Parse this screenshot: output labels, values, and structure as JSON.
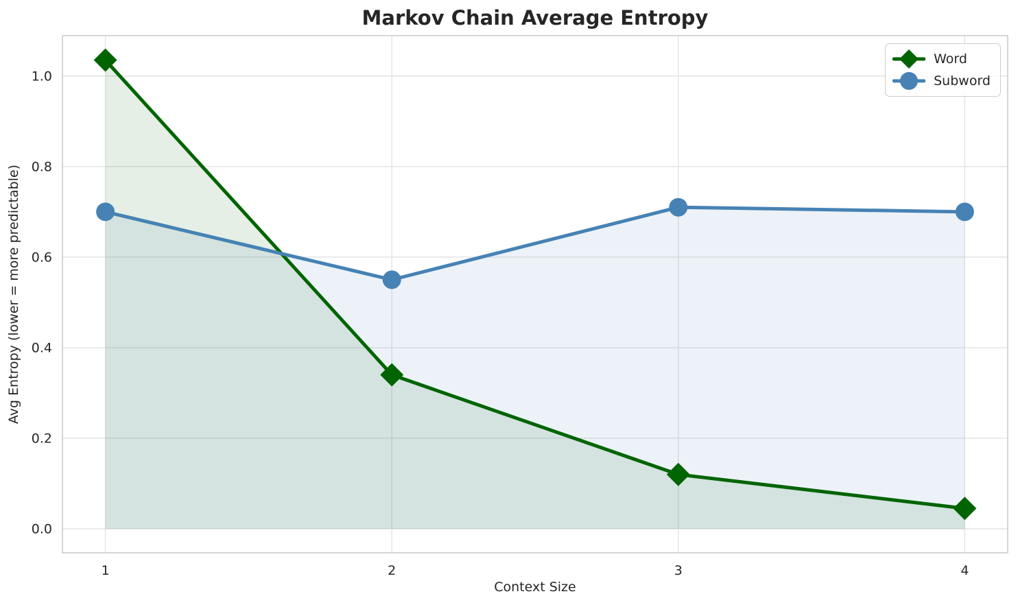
{
  "chart_data": {
    "type": "line",
    "title": "Markov Chain Average Entropy",
    "xlabel": "Context Size",
    "ylabel": "Avg Entropy (lower = more predictable)",
    "x": [
      1,
      2,
      3,
      4
    ],
    "series": [
      {
        "name": "Word",
        "values": [
          1.035,
          0.34,
          0.12,
          0.045
        ],
        "color": "#006400",
        "marker": "diamond",
        "fill_alpha": 0.1
      },
      {
        "name": "Subword",
        "values": [
          0.7,
          0.55,
          0.71,
          0.7
        ],
        "color": "#4682b4",
        "marker": "circle",
        "fill_alpha": 0.1
      }
    ],
    "xticks": [
      1,
      2,
      3,
      4
    ],
    "xtick_labels": [
      "1",
      "2",
      "3",
      "4"
    ],
    "yticks": [
      0.0,
      0.2,
      0.4,
      0.6,
      0.8,
      1.0
    ],
    "ytick_labels": [
      "0.0",
      "0.2",
      "0.4",
      "0.6",
      "0.8",
      "1.0"
    ],
    "xlim": [
      0.85,
      4.15
    ],
    "ylim": [
      -0.053,
      1.089
    ],
    "fill_baseline": 0,
    "grid": true,
    "legend_position": "upper right",
    "line_width": 5,
    "grid_color": "#e3e3e3",
    "spine_color": "#cccccc",
    "text_color": "#262626",
    "background_color": "#ffffff"
  }
}
